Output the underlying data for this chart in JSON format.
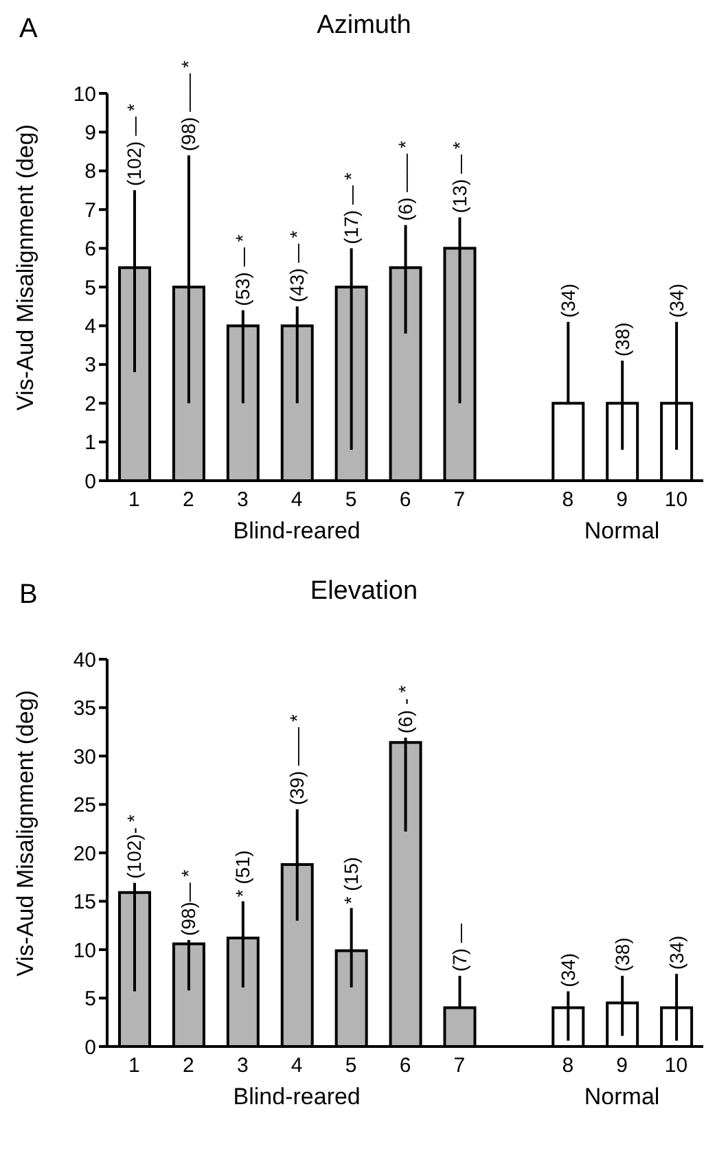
{
  "chart_data": [
    {
      "type": "bar",
      "title": "Azimuth",
      "ylabel": "Vis-Aud Misalignment (deg)",
      "categories": [
        "1",
        "2",
        "3",
        "4",
        "5",
        "6",
        "7",
        null,
        "8",
        "9",
        "10"
      ],
      "values": [
        5.5,
        5.0,
        4.0,
        4.0,
        5.0,
        5.5,
        6.0,
        null,
        2.0,
        2.0,
        2.0
      ],
      "colors": [
        "#b4b4b4",
        "#b4b4b4",
        "#b4b4b4",
        "#b4b4b4",
        "#b4b4b4",
        "#b4b4b4",
        "#b4b4b4",
        null,
        "#ffffff",
        "#ffffff",
        "#ffffff"
      ],
      "errors": [
        [
          2.8,
          7.5
        ],
        [
          2.0,
          8.4
        ],
        [
          2.0,
          4.4
        ],
        [
          2.0,
          4.5
        ],
        [
          0.8,
          6.0
        ],
        [
          3.8,
          6.6
        ],
        [
          2.0,
          6.8
        ],
        null,
        [
          2.0,
          4.1
        ],
        [
          0.8,
          3.1
        ],
        [
          0.8,
          4.1
        ]
      ],
      "ylim": [
        0,
        10
      ],
      "yticks": [
        0,
        1,
        2,
        3,
        4,
        5,
        6,
        7,
        8,
        9,
        10
      ],
      "annotations": [
        "A",
        {
          "text": "(102) — *",
          "x": "1",
          "y": 7.5
        },
        {
          "text": "(98) —— *",
          "x": "2",
          "y": 8.4
        },
        {
          "text": "(53) — *",
          "x": "3",
          "y": 4.4
        },
        {
          "text": "(43) — *",
          "x": "4",
          "y": 4.5
        },
        {
          "text": "(17) — *",
          "x": "5",
          "y": 6.0
        },
        {
          "text": "(6) —— *",
          "x": "6",
          "y": 6.6
        },
        {
          "text": "(13) — *",
          "x": "7",
          "y": 6.8
        },
        {
          "text": "(34)",
          "x": "8",
          "y": 4.1
        },
        {
          "text": "(38)",
          "x": "9",
          "y": 3.1
        },
        {
          "text": "(34)",
          "x": "10",
          "y": 4.1
        },
        "Blind-reared",
        "Normal"
      ]
    },
    {
      "type": "bar",
      "title": "Elevation",
      "ylabel": "Vis-Aud Misalignment (deg)",
      "categories": [
        "1",
        "2",
        "3",
        "4",
        "5",
        "6",
        "7",
        null,
        "8",
        "9",
        "10"
      ],
      "values": [
        15.9,
        10.6,
        11.2,
        18.8,
        9.9,
        31.4,
        4.0,
        null,
        4.0,
        4.5,
        4.0
      ],
      "colors": [
        "#b4b4b4",
        "#b4b4b4",
        "#b4b4b4",
        "#b4b4b4",
        "#b4b4b4",
        "#b4b4b4",
        "#b4b4b4",
        null,
        "#ffffff",
        "#ffffff",
        "#ffffff"
      ],
      "errors": [
        [
          5.7,
          16.9
        ],
        [
          5.8,
          11.0
        ],
        [
          6.1,
          15.0
        ],
        [
          13.0,
          24.5
        ],
        [
          6.1,
          14.3
        ],
        [
          22.2,
          31.9
        ],
        [
          4.0,
          7.3
        ],
        null,
        [
          0.6,
          5.7
        ],
        [
          1.1,
          7.3
        ],
        [
          0.6,
          7.5
        ]
      ],
      "ylim": [
        0,
        40
      ],
      "yticks": [
        0,
        5,
        10,
        15,
        20,
        25,
        30,
        35,
        40
      ],
      "annotations": [
        "B",
        {
          "text": "(102)- *",
          "x": "1",
          "y": 16.9
        },
        {
          "text": "(98)— *",
          "x": "2",
          "y": 11.0
        },
        {
          "text": "* (51)",
          "x": "3",
          "y": 15.0
        },
        {
          "text": "(39) —— *",
          "x": "4",
          "y": 24.5
        },
        {
          "text": "* (15)",
          "x": "5",
          "y": 14.3
        },
        {
          "text": "(6) - *",
          "x": "6",
          "y": 31.9
        },
        {
          "text": "(7) —",
          "x": "7",
          "y": 7.3
        },
        {
          "text": "(34)",
          "x": "8",
          "y": 5.7
        },
        {
          "text": "(38)",
          "x": "9",
          "y": 7.3
        },
        {
          "text": "(34)",
          "x": "10",
          "y": 7.5
        },
        "Blind-reared",
        "Normal"
      ]
    }
  ]
}
